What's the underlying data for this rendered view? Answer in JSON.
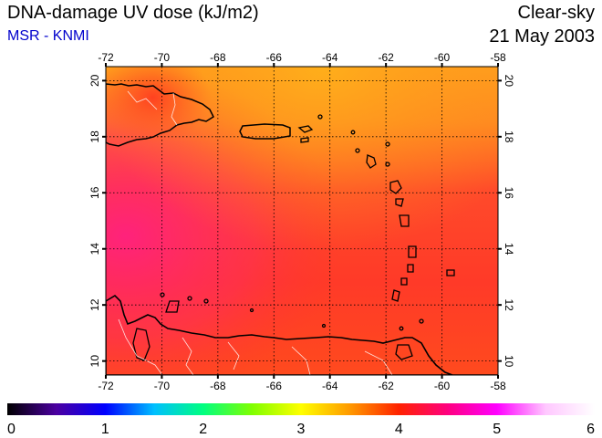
{
  "header": {
    "title": "DNA-damage UV dose (kJ/m2)",
    "credit": "MSR - KNMI",
    "condition": "Clear-sky",
    "date": "21 May 2003"
  },
  "map": {
    "lon_range": [
      -72,
      -58
    ],
    "lat_range": [
      9.5,
      20.5
    ],
    "lon_ticks": [
      "-72",
      "-70",
      "-68",
      "-66",
      "-64",
      "-62",
      "-60",
      "-58"
    ],
    "lat_ticks": [
      "10",
      "12",
      "14",
      "16",
      "18",
      "20"
    ],
    "gridlines": "dotted",
    "coastline_color": "#000000",
    "border_color": "#ffffff"
  },
  "colorbar": {
    "min": 0,
    "max": 6,
    "tick_labels": [
      "0",
      "1",
      "2",
      "3",
      "4",
      "5",
      "6"
    ],
    "stops": [
      "#000000",
      "#4b00a0",
      "#0000ff",
      "#00bfff",
      "#00ff80",
      "#80ff00",
      "#ffff00",
      "#ff9900",
      "#ff2200",
      "#ff0080",
      "#ff00ff",
      "#ffc8ff",
      "#ffffff"
    ]
  },
  "field": {
    "colors": {
      "north": "#ff9a1e",
      "center": "#ff3d2a",
      "west": "#ff2a70",
      "south": "#ff4020"
    }
  }
}
